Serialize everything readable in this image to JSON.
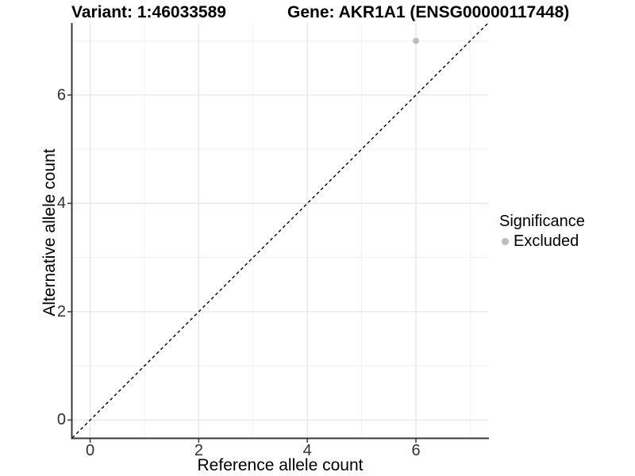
{
  "chart_data": {
    "type": "scatter",
    "title_left": "Variant: 1:46033589",
    "title_right": "Gene: AKR1A1 (ENSG00000117448)",
    "xlabel": "Reference allele count",
    "ylabel": "Alternative allele count",
    "xlim": [
      -0.33,
      7.33
    ],
    "ylim": [
      -0.33,
      7.33
    ],
    "xticks": [
      0,
      2,
      4,
      6
    ],
    "yticks": [
      0,
      2,
      4,
      6
    ],
    "xticks_minor": [
      1,
      3,
      5,
      7
    ],
    "yticks_minor": [
      1,
      3,
      5,
      7
    ],
    "grid": true,
    "points": [
      {
        "x": 6,
        "y": 7,
        "series": "Excluded"
      }
    ],
    "reference_line": {
      "style": "dashed",
      "from": [
        -0.33,
        -0.33
      ],
      "to": [
        7.33,
        7.33
      ],
      "color": "#000000"
    },
    "legend": {
      "title": "Significance",
      "position": "right",
      "entries": [
        {
          "label": "Excluded",
          "color": "#bdbdbd"
        }
      ]
    },
    "colors": {
      "grid_major": "#e4e4e4",
      "grid_minor": "#f1f1f1",
      "axis_line": "#383838",
      "tick_mark": "#383838",
      "point_excluded": "#bdbdbd"
    }
  }
}
